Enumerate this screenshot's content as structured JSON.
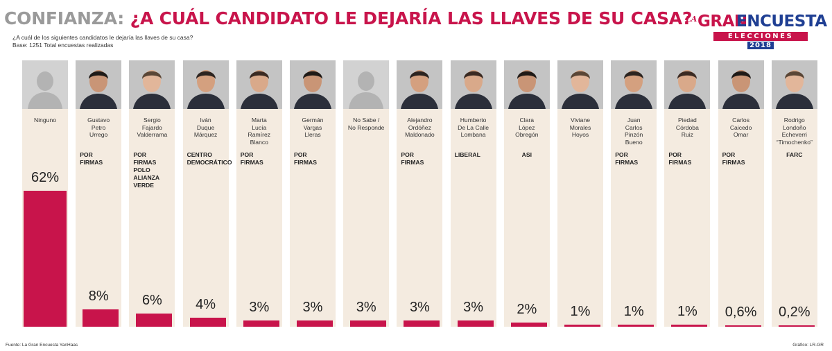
{
  "header": {
    "title_prefix": "CONFIANZA:",
    "title_main": "¿A CUÁL CANDIDATO LE DEJARÍA LAS LLAVES DE SU CASA?",
    "question": "¿A cuál de los siguientes candidatos le dejaría las llaves de su casa?",
    "base": "Base: 1251 Total encuestas realizadas"
  },
  "logo": {
    "la": "LA",
    "gran": "GRAN",
    "encuesta": "ENCUESTA",
    "elecciones": "ELECCIONES",
    "year": "2018"
  },
  "footer": {
    "source": "Fuente: La Gran Encuesta YanHaas",
    "credit": "Gráfico: LR-GR"
  },
  "colors": {
    "accent": "#c8144b",
    "panel": "#f4ebe0",
    "brand_blue": "#1f3f93"
  },
  "chart_data": {
    "type": "bar",
    "title": "¿A CUÁL CANDIDATO LE DEJARÍA LAS LLAVES DE SU CASA?",
    "ylabel": "%",
    "ylim": [
      0,
      62
    ],
    "categories": [
      "Ninguno",
      "Gustavo Petro Urrego",
      "Sergio Fajardo Valderrama",
      "Iván Duque Márquez",
      "Marta Lucía Ramírez Blanco",
      "Germán Vargas Lleras",
      "No Sabe / No Responde",
      "Alejandro Ordóñez Maldonado",
      "Humberto De La Calle Lombana",
      "Clara López Obregón",
      "Viviane Morales Hoyos",
      "Juan Carlos Pinzón Bueno",
      "Piedad Córdoba Ruiz",
      "Carlos Caicedo Omar",
      "Rodrigo Londoño Echeverri “Timochenko”"
    ],
    "values": [
      62,
      8,
      6,
      4,
      3,
      3,
      3,
      3,
      3,
      2,
      1,
      1,
      1,
      0.6,
      0.2
    ],
    "candidates": [
      {
        "name": [
          "Ninguno"
        ],
        "party": [],
        "label": "62%",
        "value": 62,
        "photo": false
      },
      {
        "name": [
          "Gustavo",
          "Petro",
          "Urrego"
        ],
        "party": [
          "POR",
          "FIRMAS"
        ],
        "label": "8%",
        "value": 8,
        "photo": true
      },
      {
        "name": [
          "Sergio",
          "Fajardo",
          "Valderrama"
        ],
        "party": [
          "POR",
          "FIRMAS",
          "POLO",
          "ALIANZA",
          "VERDE"
        ],
        "label": "6%",
        "value": 6,
        "photo": true
      },
      {
        "name": [
          "Iván",
          "Duque",
          "Márquez"
        ],
        "party": [
          "CENTRO",
          "DEMOCRÁTICO"
        ],
        "label": "4%",
        "value": 4,
        "photo": true
      },
      {
        "name": [
          "Marta",
          "Lucía",
          "Ramírez",
          "Blanco"
        ],
        "party": [
          "POR",
          "FIRMAS"
        ],
        "label": "3%",
        "value": 3,
        "photo": true
      },
      {
        "name": [
          "Germán",
          "Vargas",
          "Lleras"
        ],
        "party": [
          "POR",
          "FIRMAS"
        ],
        "label": "3%",
        "value": 3,
        "photo": true
      },
      {
        "name": [
          "No Sabe /",
          "No Responde"
        ],
        "party": [],
        "label": "3%",
        "value": 3,
        "photo": false
      },
      {
        "name": [
          "Alejandro",
          "Ordóñez",
          "Maldonado"
        ],
        "party": [
          "POR",
          "FIRMAS"
        ],
        "label": "3%",
        "value": 3,
        "photo": true
      },
      {
        "name": [
          "Humberto",
          "De La Calle",
          "Lombana"
        ],
        "party": [
          "LIBERAL"
        ],
        "label": "3%",
        "value": 3,
        "photo": true
      },
      {
        "name": [
          "Clara",
          "López",
          "Obregón"
        ],
        "party": [
          "ASI"
        ],
        "label": "2%",
        "value": 2,
        "photo": true
      },
      {
        "name": [
          "Viviane",
          "Morales",
          "Hoyos"
        ],
        "party": [],
        "label": "1%",
        "value": 1,
        "photo": true
      },
      {
        "name": [
          "Juan",
          "Carlos",
          "Pinzón",
          "Bueno"
        ],
        "party": [
          "POR",
          "FIRMAS"
        ],
        "label": "1%",
        "value": 1,
        "photo": true
      },
      {
        "name": [
          "Piedad",
          "Córdoba",
          "Ruiz"
        ],
        "party": [
          "POR",
          "FIRMAS"
        ],
        "label": "1%",
        "value": 1,
        "photo": true
      },
      {
        "name": [
          "Carlos",
          "Caicedo",
          "Omar"
        ],
        "party": [
          "POR",
          "FIRMAS"
        ],
        "label": "0,6%",
        "value": 0.6,
        "photo": true
      },
      {
        "name": [
          "Rodrigo",
          "Londoño",
          "Echeverri",
          "“Timochenko”"
        ],
        "party": [
          "FARC"
        ],
        "label": "0,2%",
        "value": 0.2,
        "photo": true
      }
    ]
  }
}
